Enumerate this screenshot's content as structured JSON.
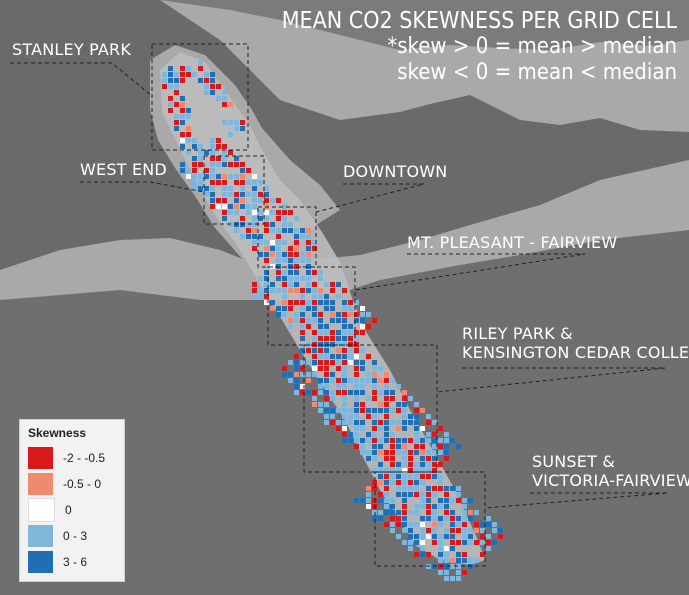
{
  "title": {
    "main": "MEAN CO2 SKEWNESS PER GRID CELL",
    "note_line1": "*skew > 0 = mean > median",
    "note_line2": "skew < 0 = mean < median"
  },
  "regions": [
    {
      "id": "stanley-park",
      "label": "STANLEY PARK"
    },
    {
      "id": "west-end",
      "label": "WEST END"
    },
    {
      "id": "downtown",
      "label": "DOWNTOWN"
    },
    {
      "id": "mt-pleasant",
      "label": "MT. PLEASANT - FAIRVIEW"
    },
    {
      "id": "riley-park",
      "label_line1": "RILEY PARK &",
      "label_line2": "KENSINGTON CEDAR COLLEGE"
    },
    {
      "id": "sunset",
      "label_line1": "SUNSET &",
      "label_line2": "VICTORIA-FAIRVIEW"
    }
  ],
  "legend": {
    "title": "Skewness",
    "items": [
      {
        "label": "-2 - -0.5",
        "color": "#d7191c"
      },
      {
        "label": "-0.5 - 0",
        "color": "#ef8a6f"
      },
      {
        "label": "0",
        "color": "#ffffff"
      },
      {
        "label": "0 - 3",
        "color": "#7fb6d9"
      },
      {
        "label": "3 - 6",
        "color": "#1f6fb2"
      }
    ]
  },
  "colors": {
    "water": "#6a6a6a",
    "land": "#a9a9a9",
    "route": "#bdbdbd",
    "text": "#ffffff"
  }
}
